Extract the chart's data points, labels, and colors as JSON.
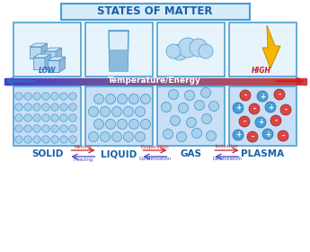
{
  "title": "STATES OF MATTER",
  "title_color": "#1a5fa8",
  "title_bg": "#d6ecf8",
  "title_border": "#4a9fd4",
  "bg_color": "#ffffff",
  "arrow_label": "Temperature/Energy",
  "arrow_label_color": "#4a7ab5",
  "low_text": "LOW",
  "high_text": "HIGH",
  "state_names": [
    "SOLID",
    "LIQUID",
    "GAS",
    "PLASMA"
  ],
  "state_name_color": "#1a5fa8",
  "transitions": [
    [
      "Melting",
      "Freezing"
    ],
    [
      "Evaporation",
      "Condensation"
    ],
    [
      "Ionization",
      "Deionization"
    ]
  ],
  "transition_fwd_color": "#cc2222",
  "transition_back_color": "#4444cc",
  "panel_bg": "#c8dff5",
  "panel_border": "#4a9fd4",
  "panel_bg_white": "#f0f8ff",
  "dot_face": "#aad0eb",
  "dot_edge": "#4a9fd4",
  "plasma_pos_color": "#4a9fd4",
  "plasma_neg_color": "#dd4444",
  "icon_border": "#4a9fd4",
  "icon_bg": "#e8f4fc",
  "solid_dot_r": 4.2,
  "liquid_dot_r": 5.5,
  "gas_dot_r": 5.5,
  "plasma_dot_r": 6.0
}
